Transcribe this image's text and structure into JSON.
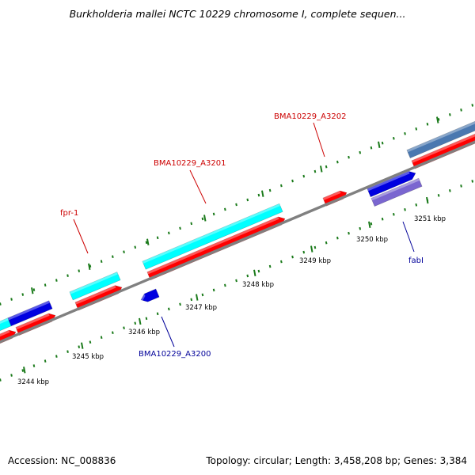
{
  "title": "Burkholderia mallei NCTC 10229 chromosome I, complete sequen...",
  "footer": {
    "accession": "Accession: NC_008836",
    "summary": "Topology: circular; Length: 3,458,208 bp; Genes: 3,384"
  },
  "colors": {
    "forward_cds": "#00ffff",
    "reverse_cds": "#ff0000",
    "other_forward": "#0000e0",
    "other_reverse": "#7a66d0",
    "steelblue_feature": "#4a78b0",
    "backbone": "#808080",
    "tick": "#1a7a1a",
    "label_forward": "#cc0000",
    "label_reverse": "#000099"
  },
  "ticks": {
    "major_labels": [
      "3244 kbp",
      "3245 kbp",
      "3246 kbp",
      "3247 kbp",
      "3248 kbp",
      "3249 kbp",
      "3250 kbp",
      "3251 kbp"
    ]
  },
  "genes": {
    "fpr1": "fpr-1",
    "a3201": "BMA10229_A3201",
    "a3202": "BMA10229_A3202",
    "a3200": "BMA10229_A3200",
    "fabI": "fabI"
  }
}
